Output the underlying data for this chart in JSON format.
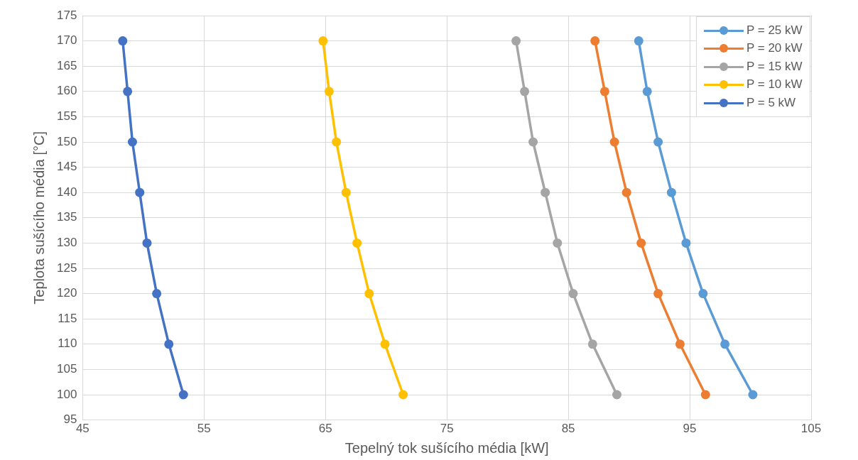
{
  "chart_data": {
    "type": "line",
    "xlabel": "Tepelný tok sušícího média [kW]",
    "ylabel": "Teplota sušícího média [°C]",
    "xlim": [
      45,
      105
    ],
    "xticks": [
      45,
      55,
      65,
      75,
      85,
      95,
      105
    ],
    "ylim": [
      95,
      175
    ],
    "yticks": [
      95,
      100,
      105,
      110,
      115,
      120,
      125,
      130,
      135,
      140,
      145,
      150,
      155,
      160,
      165,
      170,
      175
    ],
    "grid": true,
    "legend": "top right",
    "marker": "circle",
    "line_style": "solid",
    "series": [
      {
        "name": "P = 25 kW",
        "color": "#5b9bd5",
        "x": [
          90.8,
          91.5,
          92.4,
          93.5,
          94.7,
          96.1,
          97.9,
          100.2
        ],
        "values": [
          170,
          160,
          150,
          140,
          130,
          120,
          110,
          100
        ]
      },
      {
        "name": "P = 20 kW",
        "color": "#ed7d31",
        "x": [
          87.2,
          88.0,
          88.8,
          89.8,
          91.0,
          92.4,
          94.2,
          96.3
        ],
        "values": [
          170,
          160,
          150,
          140,
          130,
          120,
          110,
          100
        ]
      },
      {
        "name": "P = 15 kW",
        "color": "#a5a5a5",
        "x": [
          80.7,
          81.4,
          82.1,
          83.1,
          84.1,
          85.4,
          87.0,
          89.0
        ],
        "values": [
          170,
          160,
          150,
          140,
          130,
          120,
          110,
          100
        ]
      },
      {
        "name": "P = 10 kW",
        "color": "#ffc000",
        "x": [
          64.8,
          65.3,
          65.9,
          66.7,
          67.6,
          68.6,
          69.9,
          71.4
        ],
        "values": [
          170,
          160,
          150,
          140,
          130,
          120,
          110,
          100
        ]
      },
      {
        "name": "P = 5 kW",
        "color": "#4472c4",
        "x": [
          48.3,
          48.7,
          49.1,
          49.7,
          50.3,
          51.1,
          52.1,
          53.3
        ],
        "values": [
          170,
          160,
          150,
          140,
          130,
          120,
          110,
          100
        ]
      }
    ]
  }
}
